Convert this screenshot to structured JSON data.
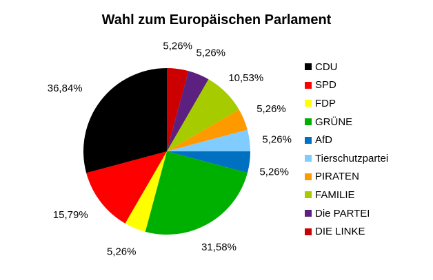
{
  "chart_data": {
    "type": "pie",
    "title": "Wahl zum Europäischen Parlament",
    "categories": [
      "CDU",
      "SPD",
      "FDP",
      "GRÜNE",
      "AfD",
      "Tierschutzpartei",
      "PIRATEN",
      "FAMILIE",
      "Die PARTEI",
      "DIE LINKE"
    ],
    "values": [
      36.84,
      15.79,
      5.26,
      31.58,
      5.26,
      5.26,
      5.26,
      10.53,
      5.26,
      5.26
    ],
    "labels": [
      "36,84%",
      "15,79%",
      "5,26%",
      "31,58%",
      "5,26%",
      "5,26%",
      "5,26%",
      "10,53%",
      "5,26%",
      "5,26%"
    ],
    "colors": [
      "#000000",
      "#ff0000",
      "#ffff00",
      "#00b000",
      "#0070c0",
      "#80ccff",
      "#ff9900",
      "#a6cc00",
      "#5c2080",
      "#cc0000"
    ],
    "legend_position": "right"
  }
}
